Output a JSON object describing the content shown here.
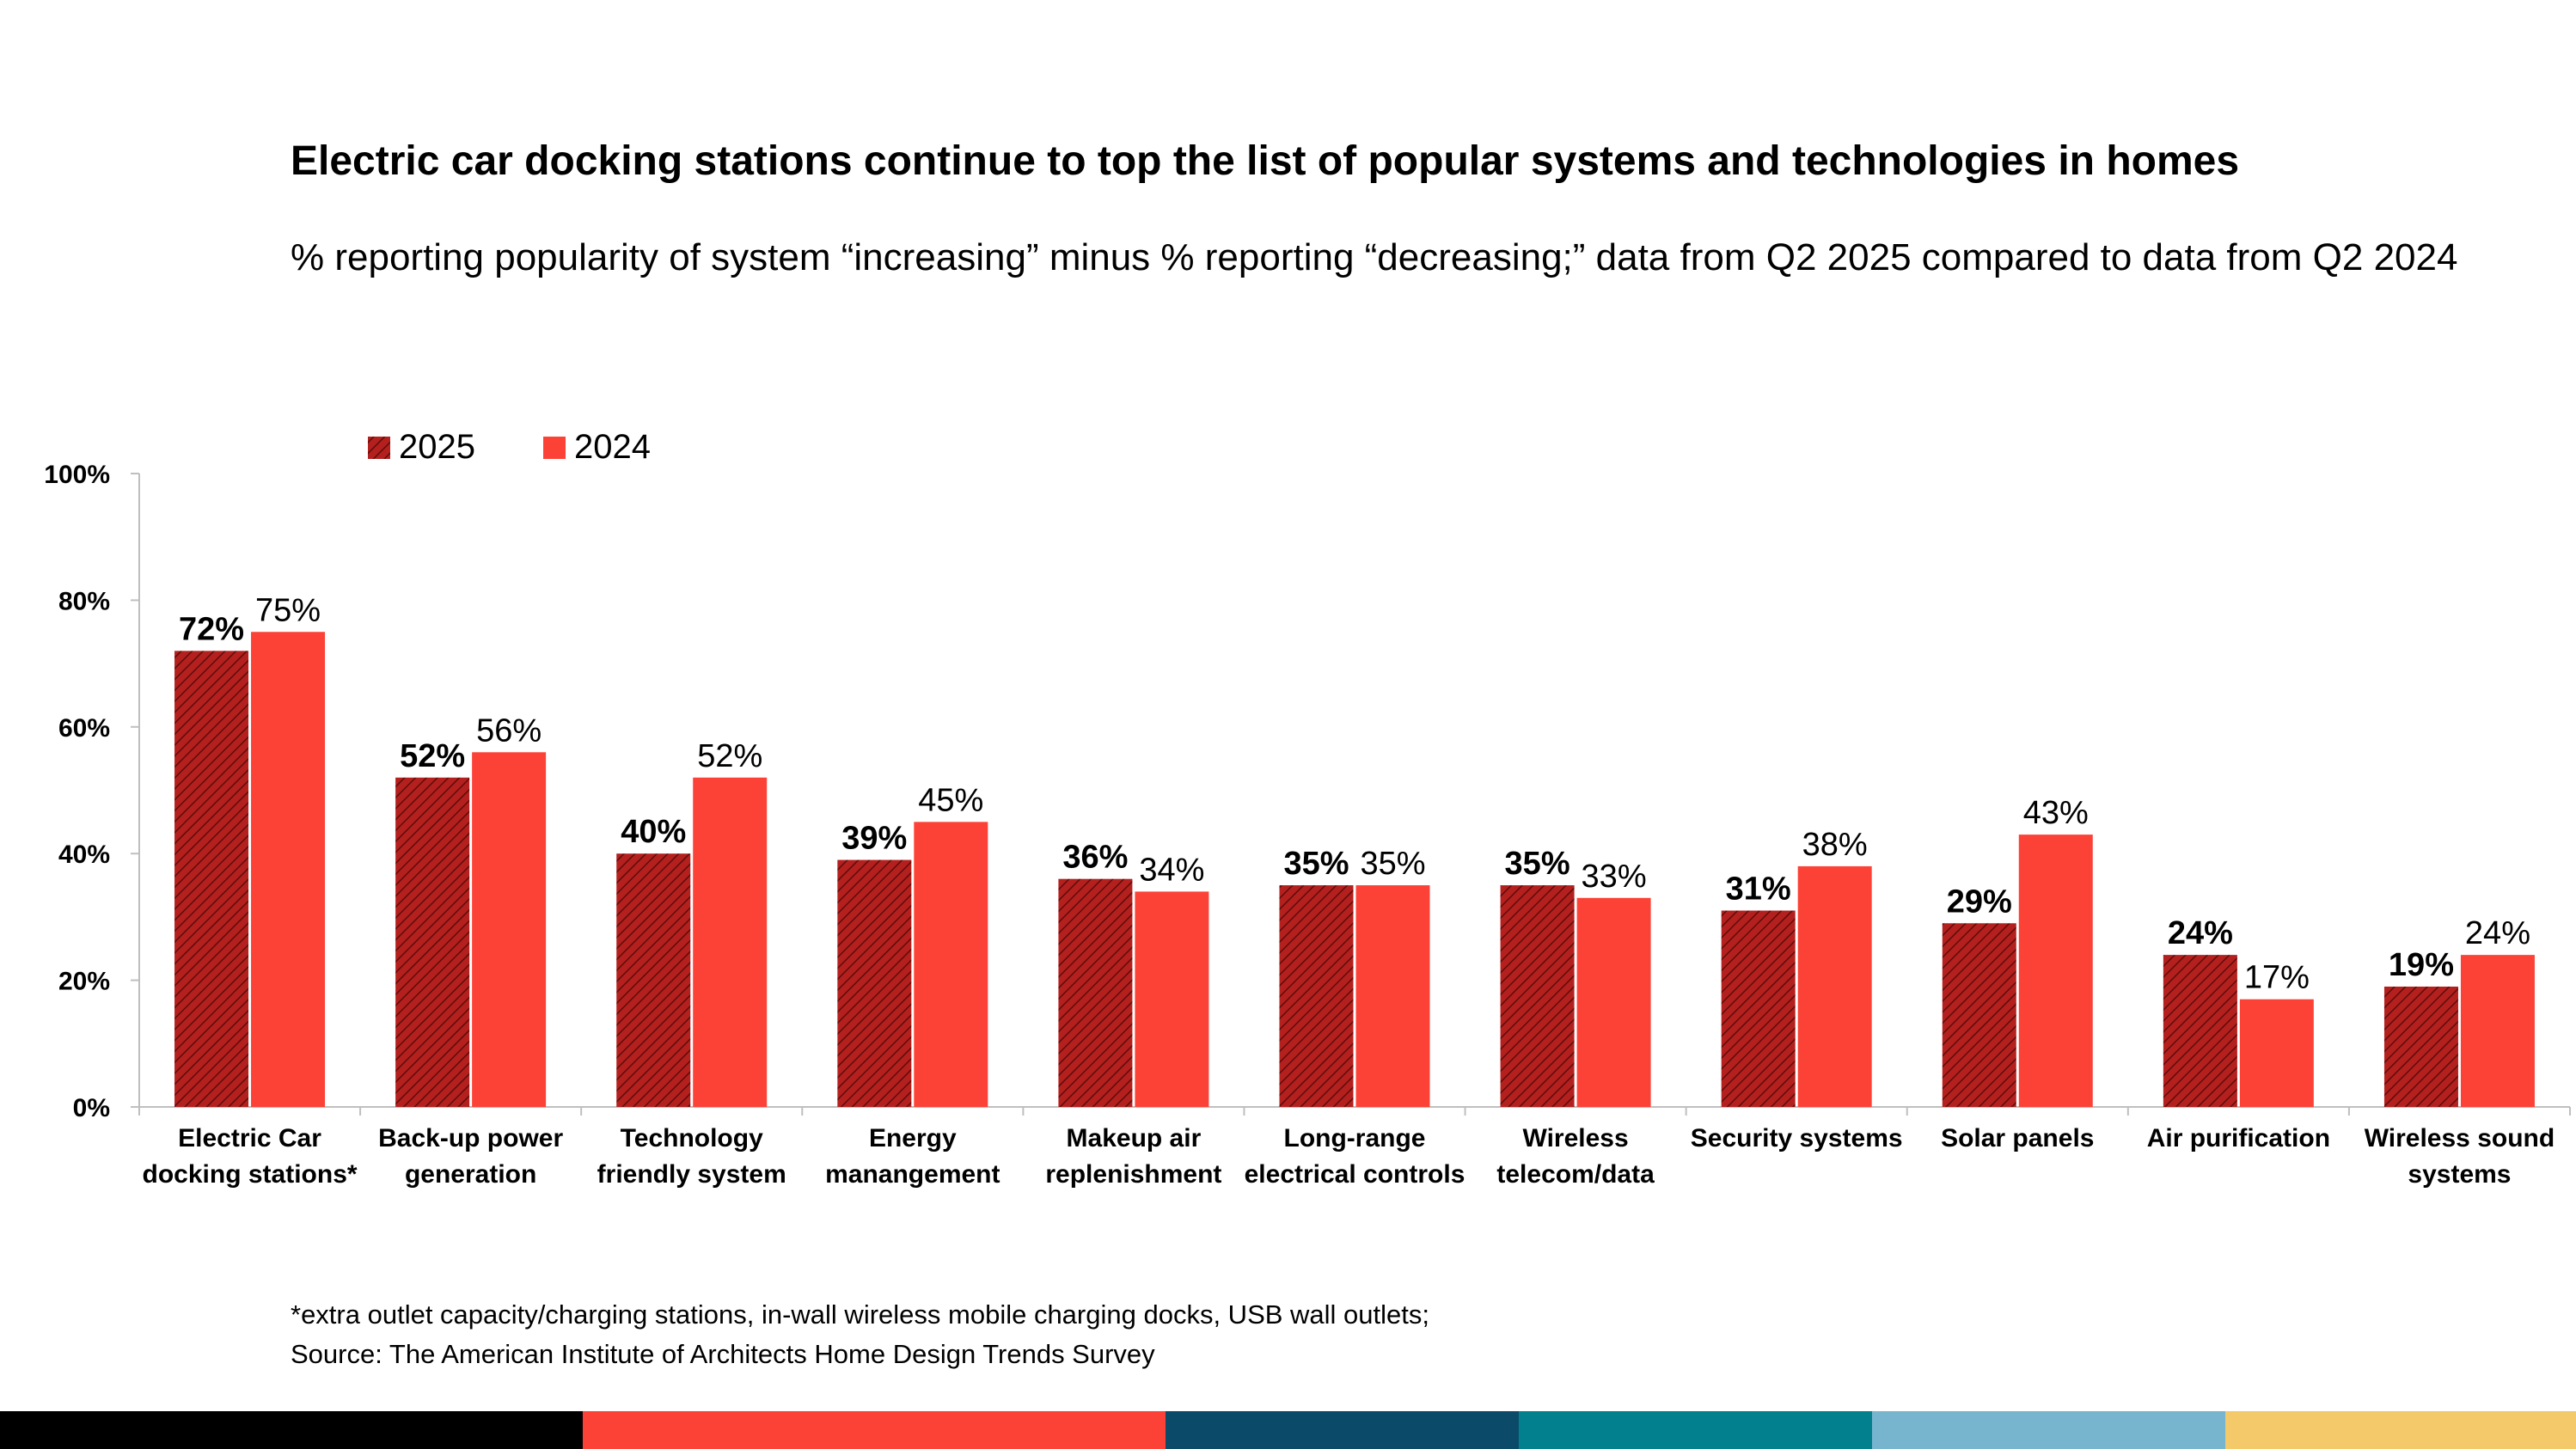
{
  "chart_data": {
    "type": "bar",
    "title": "Electric car docking stations continue to top the list of popular systems and technologies in homes",
    "subtitle": "% reporting popularity of system “increasing” minus % reporting “decreasing;” data from Q2 2025 compared to data from Q2 2024",
    "categories": [
      [
        "Electric Car",
        "docking stations*"
      ],
      [
        "Back-up power",
        "generation"
      ],
      [
        "Technology",
        "friendly system"
      ],
      [
        "Energy",
        "manangement"
      ],
      [
        "Makeup air",
        "replenishment"
      ],
      [
        "Long-range",
        "electrical controls"
      ],
      [
        "Wireless",
        "telecom/data"
      ],
      [
        "Security systems"
      ],
      [
        "Solar panels"
      ],
      [
        "Air purification"
      ],
      [
        "Wireless sound",
        "systems"
      ]
    ],
    "series": [
      {
        "name": "2025",
        "values": [
          72,
          52,
          40,
          39,
          36,
          35,
          35,
          31,
          29,
          24,
          19
        ],
        "labels": [
          "72%",
          "52%",
          "40%",
          "39%",
          "36%",
          "35%",
          "35%",
          "31%",
          "29%",
          "24%",
          "19%"
        ],
        "color": "#b3201e",
        "pattern": "diagonal-hatch"
      },
      {
        "name": "2024",
        "values": [
          75,
          56,
          52,
          45,
          34,
          35,
          33,
          38,
          43,
          17,
          24
        ],
        "labels": [
          "75%",
          "56%",
          "52%",
          "45%",
          "34%",
          "35%",
          "33%",
          "38%",
          "43%",
          "17%",
          "24%"
        ],
        "color": "#fc4237"
      }
    ],
    "ylim": [
      0,
      100
    ],
    "yticks": [
      0,
      20,
      40,
      60,
      80,
      100
    ],
    "ytick_labels": [
      "0%",
      "20%",
      "40%",
      "60%",
      "80%",
      "100%"
    ],
    "xlabel": "",
    "ylabel": "",
    "legend": "top-left",
    "grid": false
  },
  "footnote": {
    "line1": "*extra outlet capacity/charging stations, in-wall wireless mobile charging docks, USB wall outlets;",
    "line2": "Source: The American Institute of Architects Home Design Trends Survey"
  },
  "bottom_bar_colors": [
    "#000000",
    "#fc4237",
    "#0b4a68",
    "#03808d",
    "#77b5cf",
    "#f4c96a"
  ]
}
